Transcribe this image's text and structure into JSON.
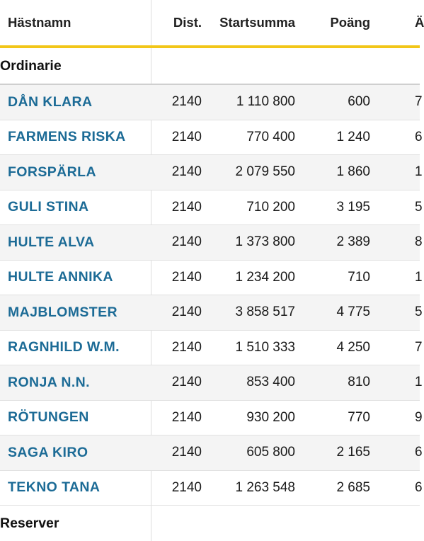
{
  "header": {
    "name": "Hästnamn",
    "dist": "Dist.",
    "startsumma": "Startsumma",
    "poang": "Poäng",
    "extra": "Ä"
  },
  "sections": [
    {
      "title": "Ordinarie",
      "rows": [
        {
          "name": "DÅN KLARA",
          "dist": "2140",
          "startsumma": "1 110 800",
          "poang": "600",
          "extra": "7"
        },
        {
          "name": "FARMENS RISKA",
          "dist": "2140",
          "startsumma": "770 400",
          "poang": "1 240",
          "extra": "6"
        },
        {
          "name": "FORSPÄRLA",
          "dist": "2140",
          "startsumma": "2 079 550",
          "poang": "1 860",
          "extra": "1"
        },
        {
          "name": "GULI STINA",
          "dist": "2140",
          "startsumma": "710 200",
          "poang": "3 195",
          "extra": "5"
        },
        {
          "name": "HULTE ALVA",
          "dist": "2140",
          "startsumma": "1 373 800",
          "poang": "2 389",
          "extra": "8"
        },
        {
          "name": "HULTE ANNIKA",
          "dist": "2140",
          "startsumma": "1 234 200",
          "poang": "710",
          "extra": "1"
        },
        {
          "name": "MAJBLOMSTER",
          "dist": "2140",
          "startsumma": "3 858 517",
          "poang": "4 775",
          "extra": "5"
        },
        {
          "name": "RAGNHILD W.M.",
          "dist": "2140",
          "startsumma": "1 510 333",
          "poang": "4 250",
          "extra": "7"
        },
        {
          "name": "RONJA N.N.",
          "dist": "2140",
          "startsumma": "853 400",
          "poang": "810",
          "extra": "1"
        },
        {
          "name": "RÖTUNGEN",
          "dist": "2140",
          "startsumma": "930 200",
          "poang": "770",
          "extra": "9"
        },
        {
          "name": "SAGA KIRO",
          "dist": "2140",
          "startsumma": "605 800",
          "poang": "2 165",
          "extra": "6"
        },
        {
          "name": "TEKNO TANA",
          "dist": "2140",
          "startsumma": "1 263 548",
          "poang": "2 685",
          "extra": "6"
        }
      ]
    },
    {
      "title": "Reserver",
      "rows": []
    }
  ],
  "colors": {
    "name_link": "#1c6b96",
    "header_accent": "#f2c618",
    "alt_row": "#f4f4f4"
  }
}
